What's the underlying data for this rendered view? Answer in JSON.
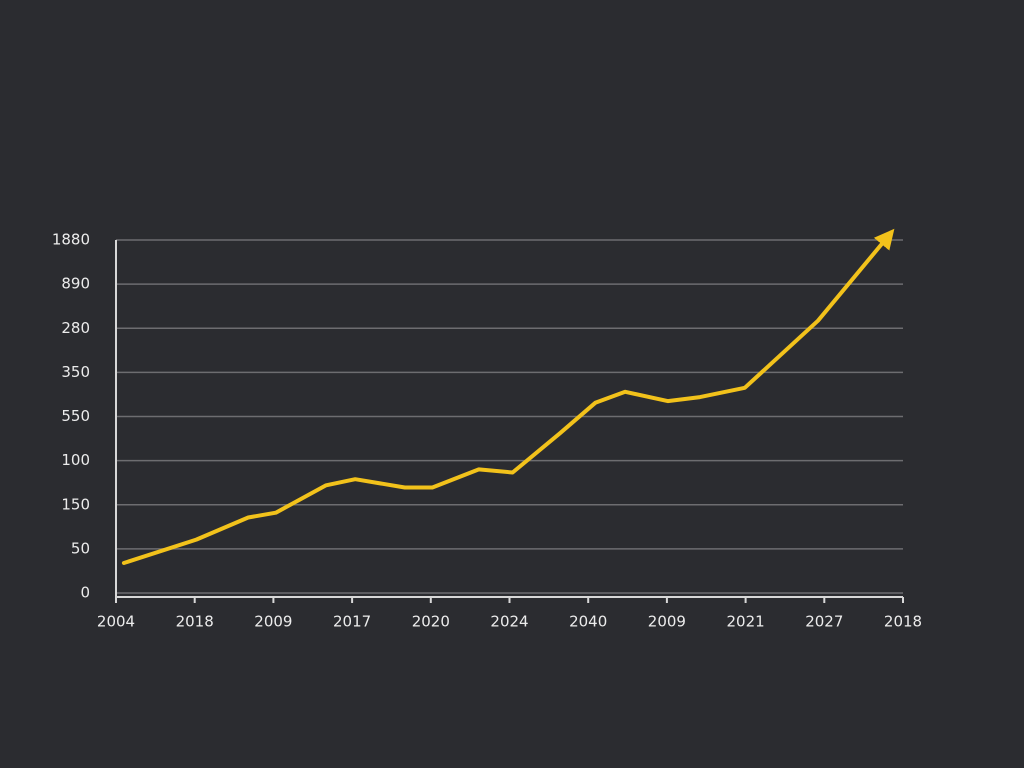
{
  "chart_data": {
    "type": "line",
    "x": [
      0.1,
      1.02,
      1.68,
      2.03,
      2.67,
      3.04,
      3.67,
      4.02,
      4.61,
      5.04,
      5.64,
      6.09,
      6.47,
      7.01,
      7.42,
      7.99,
      8.92,
      9.81
    ],
    "values": [
      0.68,
      1.21,
      1.71,
      1.82,
      2.44,
      2.58,
      2.39,
      2.39,
      2.8,
      2.73,
      3.62,
      4.31,
      4.56,
      4.35,
      4.44,
      4.65,
      6.17,
      8.08
    ],
    "color": "#f2c21b",
    "xlim": [
      0,
      10
    ],
    "xticks": [
      {
        "value": 0,
        "label": "2004"
      },
      {
        "value": 1,
        "label": "2018"
      },
      {
        "value": 2,
        "label": "2009"
      },
      {
        "value": 3,
        "label": "2017"
      },
      {
        "value": 4,
        "label": "2020"
      },
      {
        "value": 5,
        "label": "2024"
      },
      {
        "value": 6,
        "label": "2040"
      },
      {
        "value": 7,
        "label": "2009"
      },
      {
        "value": 8,
        "label": "2021"
      },
      {
        "value": 9,
        "label": "2027"
      },
      {
        "value": 10,
        "label": "2018"
      }
    ],
    "ylim": [
      0,
      8
    ],
    "yticks": [
      {
        "value": 0,
        "label": "0"
      },
      {
        "value": 1,
        "label": "50"
      },
      {
        "value": 2,
        "label": "150"
      },
      {
        "value": 3,
        "label": "100"
      },
      {
        "value": 4,
        "label": "550"
      },
      {
        "value": 5,
        "label": "350"
      },
      {
        "value": 6,
        "label": "280"
      },
      {
        "value": 7,
        "label": "890"
      },
      {
        "value": 8,
        "label": "1880"
      }
    ],
    "grid": true
  }
}
